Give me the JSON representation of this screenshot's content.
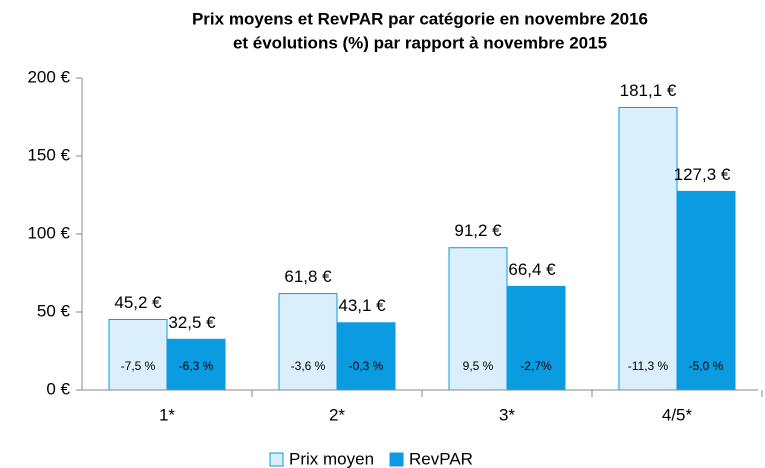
{
  "chart_data": {
    "type": "bar",
    "title": [
      "Prix moyens et RevPAR par catégorie en novembre 2016",
      "et évolutions (%) par rapport à novembre 2015"
    ],
    "categories": [
      "1*",
      "2*",
      "3*",
      "4/5*"
    ],
    "series": [
      {
        "name": "Prix moyen",
        "color": "#dbeefb",
        "edge": "#0a9be0",
        "values": [
          45.2,
          61.8,
          91.2,
          181.1
        ],
        "value_labels": [
          "45,2 €",
          "61,8 €",
          "91,2 €",
          "181,1 €"
        ],
        "changes": [
          -7.5,
          -3.6,
          9.5,
          -11.3
        ],
        "change_labels": [
          "-7,5 %",
          "-3,6 %",
          "9,5 %",
          "-11,3 %"
        ]
      },
      {
        "name": "RevPAR",
        "color": "#0a9be0",
        "edge": "#0a9be0",
        "values": [
          32.5,
          43.1,
          66.4,
          127.3
        ],
        "value_labels": [
          "32,5 €",
          "43,1 €",
          "66,4 €",
          "127,3 €"
        ],
        "changes": [
          -6.3,
          -0.3,
          -2.7,
          -5.0
        ],
        "change_labels": [
          "-6,3 %",
          "-0,3 %",
          "-2,7%",
          "-5,0 %"
        ]
      }
    ],
    "ylim": [
      0,
      200
    ],
    "yticks": [
      {
        "value": 0,
        "label": "0 €"
      },
      {
        "value": 50,
        "label": "50 €"
      },
      {
        "value": 100,
        "label": "100 €"
      },
      {
        "value": 150,
        "label": "150 €"
      },
      {
        "value": 200,
        "label": "200 €"
      }
    ],
    "legend": "bottom"
  }
}
